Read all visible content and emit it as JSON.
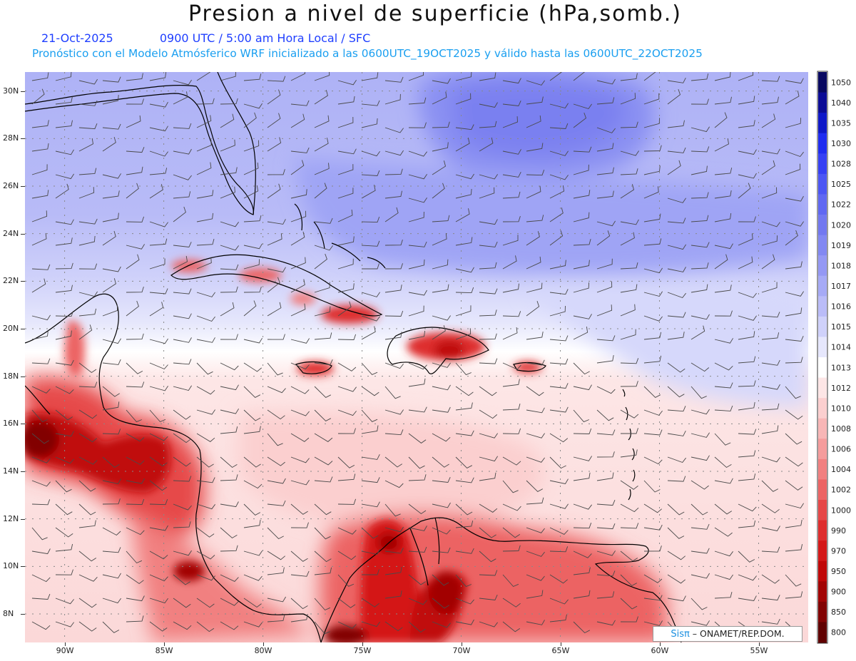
{
  "header": {
    "title": "Presion a nivel de superficie (hPa,somb.)",
    "date": "21-Oct-2025",
    "valid_time": "0900 UTC / 5:00 am Hora Local / SFC",
    "model_info": "Pronóstico con el Modelo Atmósferico WRF inicializado a las 0600UTC_19OCT2025 y válido hasta las  0600UTC_22OCT2025"
  },
  "map": {
    "lon_range": [
      -92,
      -52.5
    ],
    "lat_range": [
      6.8,
      30.8
    ],
    "lat_ticks": [
      "30N",
      "28N",
      "26N",
      "24N",
      "22N",
      "20N",
      "18N",
      "16N",
      "14N",
      "12N",
      "10N",
      "8N"
    ],
    "lon_ticks": [
      "90W",
      "85W",
      "80W",
      "75W",
      "70W",
      "65W",
      "60W",
      "55W"
    ],
    "gridlines": true
  },
  "colorbar": {
    "levels": [
      "1050",
      "1040",
      "1035",
      "1030",
      "1028",
      "1025",
      "1022",
      "1020",
      "1019",
      "1018",
      "1017",
      "1016",
      "1015",
      "1014",
      "1013",
      "1012",
      "1010",
      "1008",
      "1006",
      "1004",
      "1002",
      "1000",
      "990",
      "970",
      "950",
      "900",
      "850",
      "800"
    ],
    "colors": [
      "#080860",
      "#0c0c96",
      "#0f18c8",
      "#1f2cf0",
      "#3640f4",
      "#4c56f4",
      "#6068f2",
      "#7278f0",
      "#8288f2",
      "#9498f4",
      "#a6aaf6",
      "#babcf8",
      "#cfd1fa",
      "#e6e7fc",
      "#ffffff",
      "#fde6e6",
      "#fbcfcf",
      "#f8b6b6",
      "#f59c9c",
      "#f18080",
      "#ec6464",
      "#e64848",
      "#de2e2e",
      "#d41818",
      "#c00808",
      "#a20404",
      "#820202",
      "#600000"
    ]
  },
  "credit": {
    "brand": "Sisπ",
    "text": "– ONAMET/REP.DOM."
  }
}
